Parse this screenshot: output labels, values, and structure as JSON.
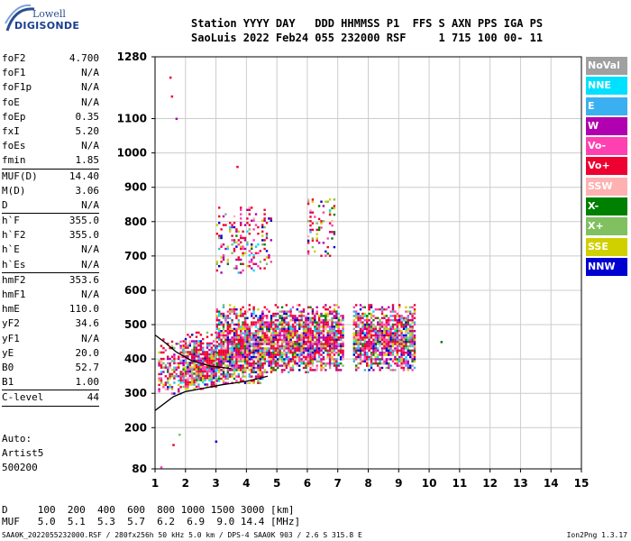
{
  "logo": {
    "top": "Lowell",
    "bottom": "DIGISONDE"
  },
  "header": {
    "line1": "Station YYYY DAY   DDD HHMMSS P1  FFS S AXN PPS IGA PS",
    "line2": "SaoLuis 2022 Feb24 055 232000 RSF     1 715 100 00- 11"
  },
  "params": [
    {
      "name": "foF2",
      "value": "4.700"
    },
    {
      "name": "foF1",
      "value": "N/A"
    },
    {
      "name": "foF1p",
      "value": "N/A"
    },
    {
      "name": "foE",
      "value": "N/A"
    },
    {
      "name": "foEp",
      "value": "0.35"
    },
    {
      "name": "fxI",
      "value": "5.20"
    },
    {
      "name": "foEs",
      "value": "N/A"
    },
    {
      "name": "fmin",
      "value": "1.85"
    },
    {
      "sep": true
    },
    {
      "name": "MUF(D)",
      "value": "14.40"
    },
    {
      "name": "M(D)",
      "value": "3.06"
    },
    {
      "name": "D",
      "value": "N/A"
    },
    {
      "sep": true
    },
    {
      "name": "h`F",
      "value": "355.0"
    },
    {
      "name": "h`F2",
      "value": "355.0"
    },
    {
      "name": "h`E",
      "value": "N/A"
    },
    {
      "name": "h`Es",
      "value": "N/A"
    },
    {
      "sep": true
    },
    {
      "name": "hmF2",
      "value": "353.6"
    },
    {
      "name": "hmF1",
      "value": "N/A"
    },
    {
      "name": "hmE",
      "value": "110.0"
    },
    {
      "name": "yF2",
      "value": "34.6"
    },
    {
      "name": "yF1",
      "value": "N/A"
    },
    {
      "name": "yE",
      "value": "20.0"
    },
    {
      "name": "B0",
      "value": "52.7"
    },
    {
      "name": "B1",
      "value": "1.00"
    },
    {
      "sep": true
    },
    {
      "name": "C-level",
      "value": "44"
    },
    {
      "sep": true
    }
  ],
  "auto": {
    "line1": "Auto:",
    "line2": "Artist5",
    "line3": "500200"
  },
  "legend": [
    {
      "label": "NoVal",
      "color": "#a0a0a0"
    },
    {
      "label": "NNE",
      "color": "#00e0ff"
    },
    {
      "label": "E",
      "color": "#3ab0f0"
    },
    {
      "label": "W",
      "color": "#b000b0"
    },
    {
      "label": "Vo-",
      "color": "#ff40b0"
    },
    {
      "label": "Vo+",
      "color": "#ee0030"
    },
    {
      "label": "SSW",
      "color": "#ffb0b0"
    },
    {
      "label": "X-",
      "color": "#008000"
    },
    {
      "label": "X+",
      "color": "#80c060"
    },
    {
      "label": "SSE",
      "color": "#d0d000"
    },
    {
      "label": "NNW",
      "color": "#0000d0"
    }
  ],
  "chart_data": {
    "type": "scatter",
    "title": "",
    "xlabel": "",
    "ylabel": "",
    "xlim": [
      1,
      15
    ],
    "ylim": [
      80,
      1280
    ],
    "x_ticks": [
      1,
      2,
      3,
      4,
      5,
      6,
      7,
      8,
      9,
      10,
      11,
      12,
      13,
      14,
      15
    ],
    "y_ticks": [
      80,
      200,
      300,
      400,
      500,
      600,
      700,
      800,
      900,
      1000,
      1100,
      1280
    ],
    "grid": true,
    "legend_position": "right",
    "echo_clusters": [
      {
        "x_range": [
          1.1,
          1.9
        ],
        "y_range": [
          300,
          460
        ],
        "density": "medium"
      },
      {
        "x_range": [
          1.9,
          3.0
        ],
        "y_range": [
          310,
          480
        ],
        "density": "high"
      },
      {
        "x_range": [
          3.0,
          4.5
        ],
        "y_range": [
          330,
          560
        ],
        "density": "high"
      },
      {
        "x_range": [
          4.5,
          6.0
        ],
        "y_range": [
          360,
          560
        ],
        "density": "high"
      },
      {
        "x_range": [
          6.0,
          7.2
        ],
        "y_range": [
          370,
          560
        ],
        "density": "high"
      },
      {
        "x_range": [
          7.5,
          9.5
        ],
        "y_range": [
          370,
          560
        ],
        "density": "high"
      },
      {
        "x_range": [
          3.0,
          4.8
        ],
        "y_range": [
          650,
          850
        ],
        "density": "low"
      },
      {
        "x_range": [
          6.0,
          6.9
        ],
        "y_range": [
          700,
          880
        ],
        "density": "low"
      }
    ],
    "isolated_points": [
      {
        "x": 1.5,
        "y": 1220
      },
      {
        "x": 1.55,
        "y": 1165
      },
      {
        "x": 1.7,
        "y": 1100
      },
      {
        "x": 3.7,
        "y": 960
      },
      {
        "x": 10.4,
        "y": 450
      },
      {
        "x": 1.6,
        "y": 150
      },
      {
        "x": 1.8,
        "y": 180
      },
      {
        "x": 3.0,
        "y": 160
      },
      {
        "x": 1.2,
        "y": 85
      }
    ],
    "profile_curve": [
      {
        "x": 1.0,
        "y": 250
      },
      {
        "x": 1.6,
        "y": 290
      },
      {
        "x": 2.0,
        "y": 305
      },
      {
        "x": 2.6,
        "y": 315
      },
      {
        "x": 3.2,
        "y": 325
      },
      {
        "x": 4.0,
        "y": 335
      },
      {
        "x": 4.7,
        "y": 350
      }
    ],
    "trace_curve": [
      {
        "x": 1.0,
        "y": 470
      },
      {
        "x": 1.3,
        "y": 450
      },
      {
        "x": 1.7,
        "y": 420
      },
      {
        "x": 2.2,
        "y": 395
      },
      {
        "x": 2.8,
        "y": 380
      },
      {
        "x": 3.5,
        "y": 372
      }
    ]
  },
  "dmuf": {
    "line1": "D     100  200  400  600  800 1000 1500 3000 [km]",
    "line2": "MUF   5.0  5.1  5.3  5.7  6.2  6.9  9.0 14.4 [MHz]"
  },
  "footer": {
    "left": "SAA0K_2022055232000.RSF / 280fx256h 50 kHz 5.0 km / DPS-4 SAA0K 903 / 2.6 S 315.8 E",
    "right": "Ion2Png 1.3.17"
  }
}
